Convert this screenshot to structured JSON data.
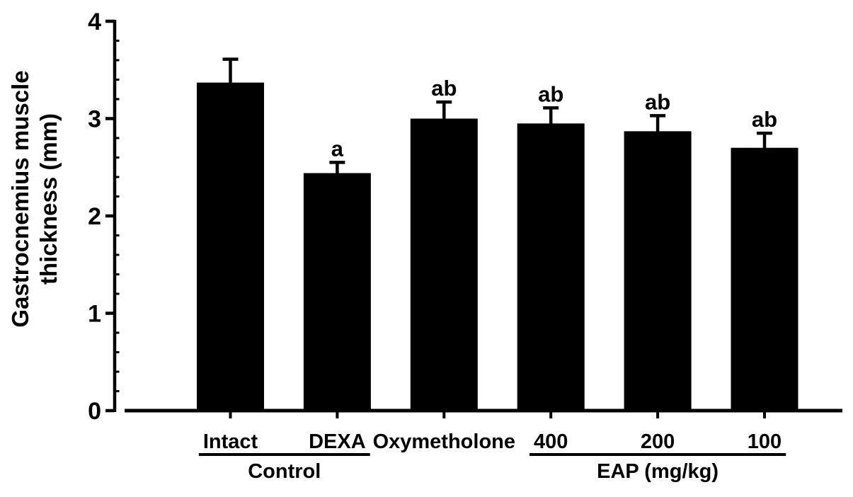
{
  "figure": {
    "background": "#ffffff",
    "ink_color": "#000000"
  },
  "chart_data": {
    "type": "bar",
    "title": "",
    "ylabel": "Gastrocnemius muscle thickness (mm)",
    "ylabel_lines": [
      "Gastrocnemius muscle",
      "thickness (mm)"
    ],
    "xlabel": "",
    "categories": [
      "Intact",
      "DEXA",
      "Oxymetholone",
      "400",
      "200",
      "100"
    ],
    "values": [
      3.37,
      2.44,
      3.0,
      2.95,
      2.87,
      2.7
    ],
    "errors": [
      0.24,
      0.11,
      0.17,
      0.16,
      0.16,
      0.15
    ],
    "error_bars": "upper-only",
    "significance_labels": [
      "",
      "a",
      "ab",
      "ab",
      "ab",
      "ab"
    ],
    "groups": [
      {
        "label": "Control",
        "from": 0,
        "to": 1
      },
      {
        "label": "EAP (mg/kg)",
        "from": 3,
        "to": 5
      }
    ],
    "ylim": [
      0,
      4
    ],
    "yticks": [
      "0",
      "1",
      "2",
      "3",
      "4"
    ],
    "minor_tick_step": 0.2,
    "bar_color": "#000000",
    "grid": false,
    "legend": null
  }
}
